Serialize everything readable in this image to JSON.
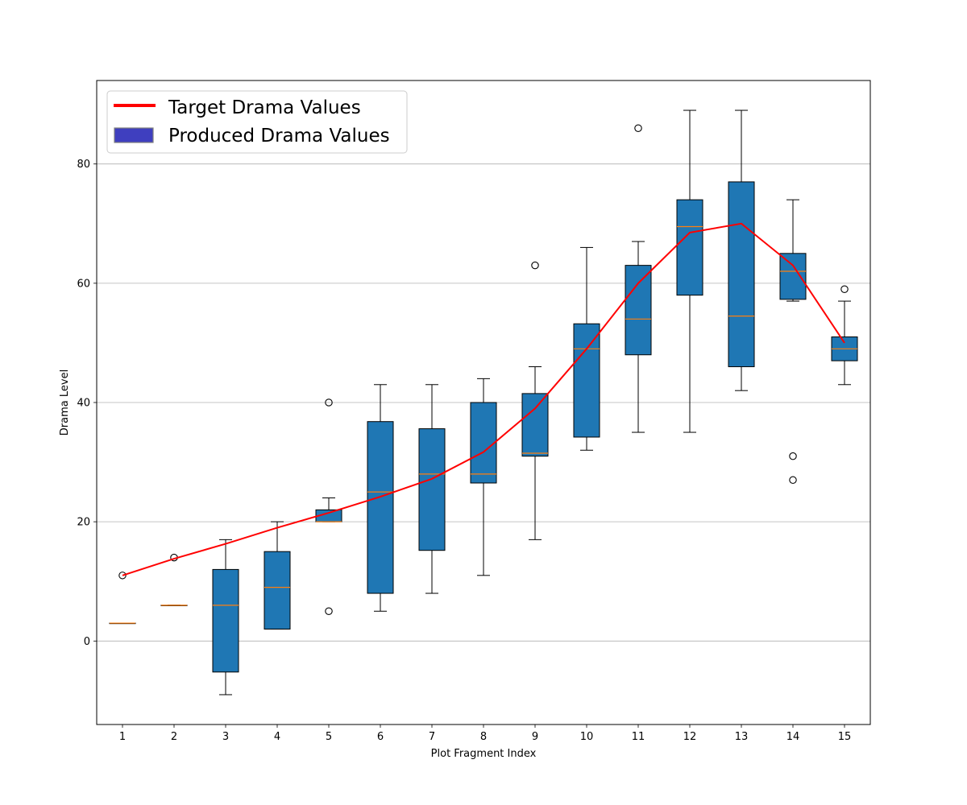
{
  "chart_data": {
    "type": "box",
    "xlabel": "Plot Fragment Index",
    "ylabel": "Drama Level",
    "ylim": [
      -14,
      94
    ],
    "yticks": [
      0,
      20,
      40,
      60,
      80
    ],
    "grid": "horizontal",
    "legend_position": "upper-left",
    "legend": [
      {
        "label": "Target Drama Values",
        "kind": "line",
        "color": "#ff0000"
      },
      {
        "label": "Produced Drama Values",
        "kind": "patch",
        "color": "#3f3fbf"
      }
    ],
    "categories": [
      "1",
      "2",
      "3",
      "4",
      "5",
      "6",
      "7",
      "8",
      "9",
      "10",
      "11",
      "12",
      "13",
      "14",
      "15"
    ],
    "boxes": [
      {
        "q1": 3,
        "median": 3,
        "q3": 3,
        "whisker_low": 3,
        "whisker_high": 3,
        "outliers": [
          11
        ]
      },
      {
        "q1": 6,
        "median": 6,
        "q3": 6,
        "whisker_low": 6,
        "whisker_high": 6,
        "outliers": [
          14
        ]
      },
      {
        "q1": -5.2,
        "median": 6,
        "q3": 12,
        "whisker_low": -9,
        "whisker_high": 17,
        "outliers": []
      },
      {
        "q1": 2,
        "median": 9,
        "q3": 15,
        "whisker_low": 2,
        "whisker_high": 20,
        "outliers": []
      },
      {
        "q1": 20,
        "median": 20,
        "q3": 22,
        "whisker_low": 20,
        "whisker_high": 24,
        "outliers": [
          40,
          5
        ]
      },
      {
        "q1": 8,
        "median": 25,
        "q3": 36.8,
        "whisker_low": 5,
        "whisker_high": 43,
        "outliers": []
      },
      {
        "q1": 15.2,
        "median": 28,
        "q3": 35.6,
        "whisker_low": 8,
        "whisker_high": 43,
        "outliers": []
      },
      {
        "q1": 26.5,
        "median": 28,
        "q3": 40,
        "whisker_low": 11,
        "whisker_high": 44,
        "outliers": []
      },
      {
        "q1": 31,
        "median": 31.5,
        "q3": 41.5,
        "whisker_low": 17,
        "whisker_high": 46,
        "outliers": [
          63
        ]
      },
      {
        "q1": 34.2,
        "median": 49,
        "q3": 53.2,
        "whisker_low": 32,
        "whisker_high": 66,
        "outliers": []
      },
      {
        "q1": 48,
        "median": 54,
        "q3": 63,
        "whisker_low": 35,
        "whisker_high": 67,
        "outliers": [
          86
        ]
      },
      {
        "q1": 58,
        "median": 69.5,
        "q3": 74,
        "whisker_low": 35,
        "whisker_high": 89,
        "outliers": []
      },
      {
        "q1": 46,
        "median": 54.5,
        "q3": 77,
        "whisker_low": 42,
        "whisker_high": 89,
        "outliers": []
      },
      {
        "q1": 57.3,
        "median": 62,
        "q3": 65,
        "whisker_low": 57,
        "whisker_high": 74,
        "outliers": [
          31,
          27
        ]
      },
      {
        "q1": 47,
        "median": 49,
        "q3": 51,
        "whisker_low": 43,
        "whisker_high": 57,
        "outliers": [
          59
        ]
      }
    ],
    "target_series": {
      "name": "Target Drama Values",
      "color": "#ff0000",
      "values": [
        11,
        13.8,
        16.3,
        19,
        21.5,
        24.2,
        27.2,
        31.7,
        39,
        49,
        60,
        68.5,
        70,
        63,
        50
      ]
    },
    "box_color": "#1f77b4",
    "median_color": "#ff7f0e"
  }
}
